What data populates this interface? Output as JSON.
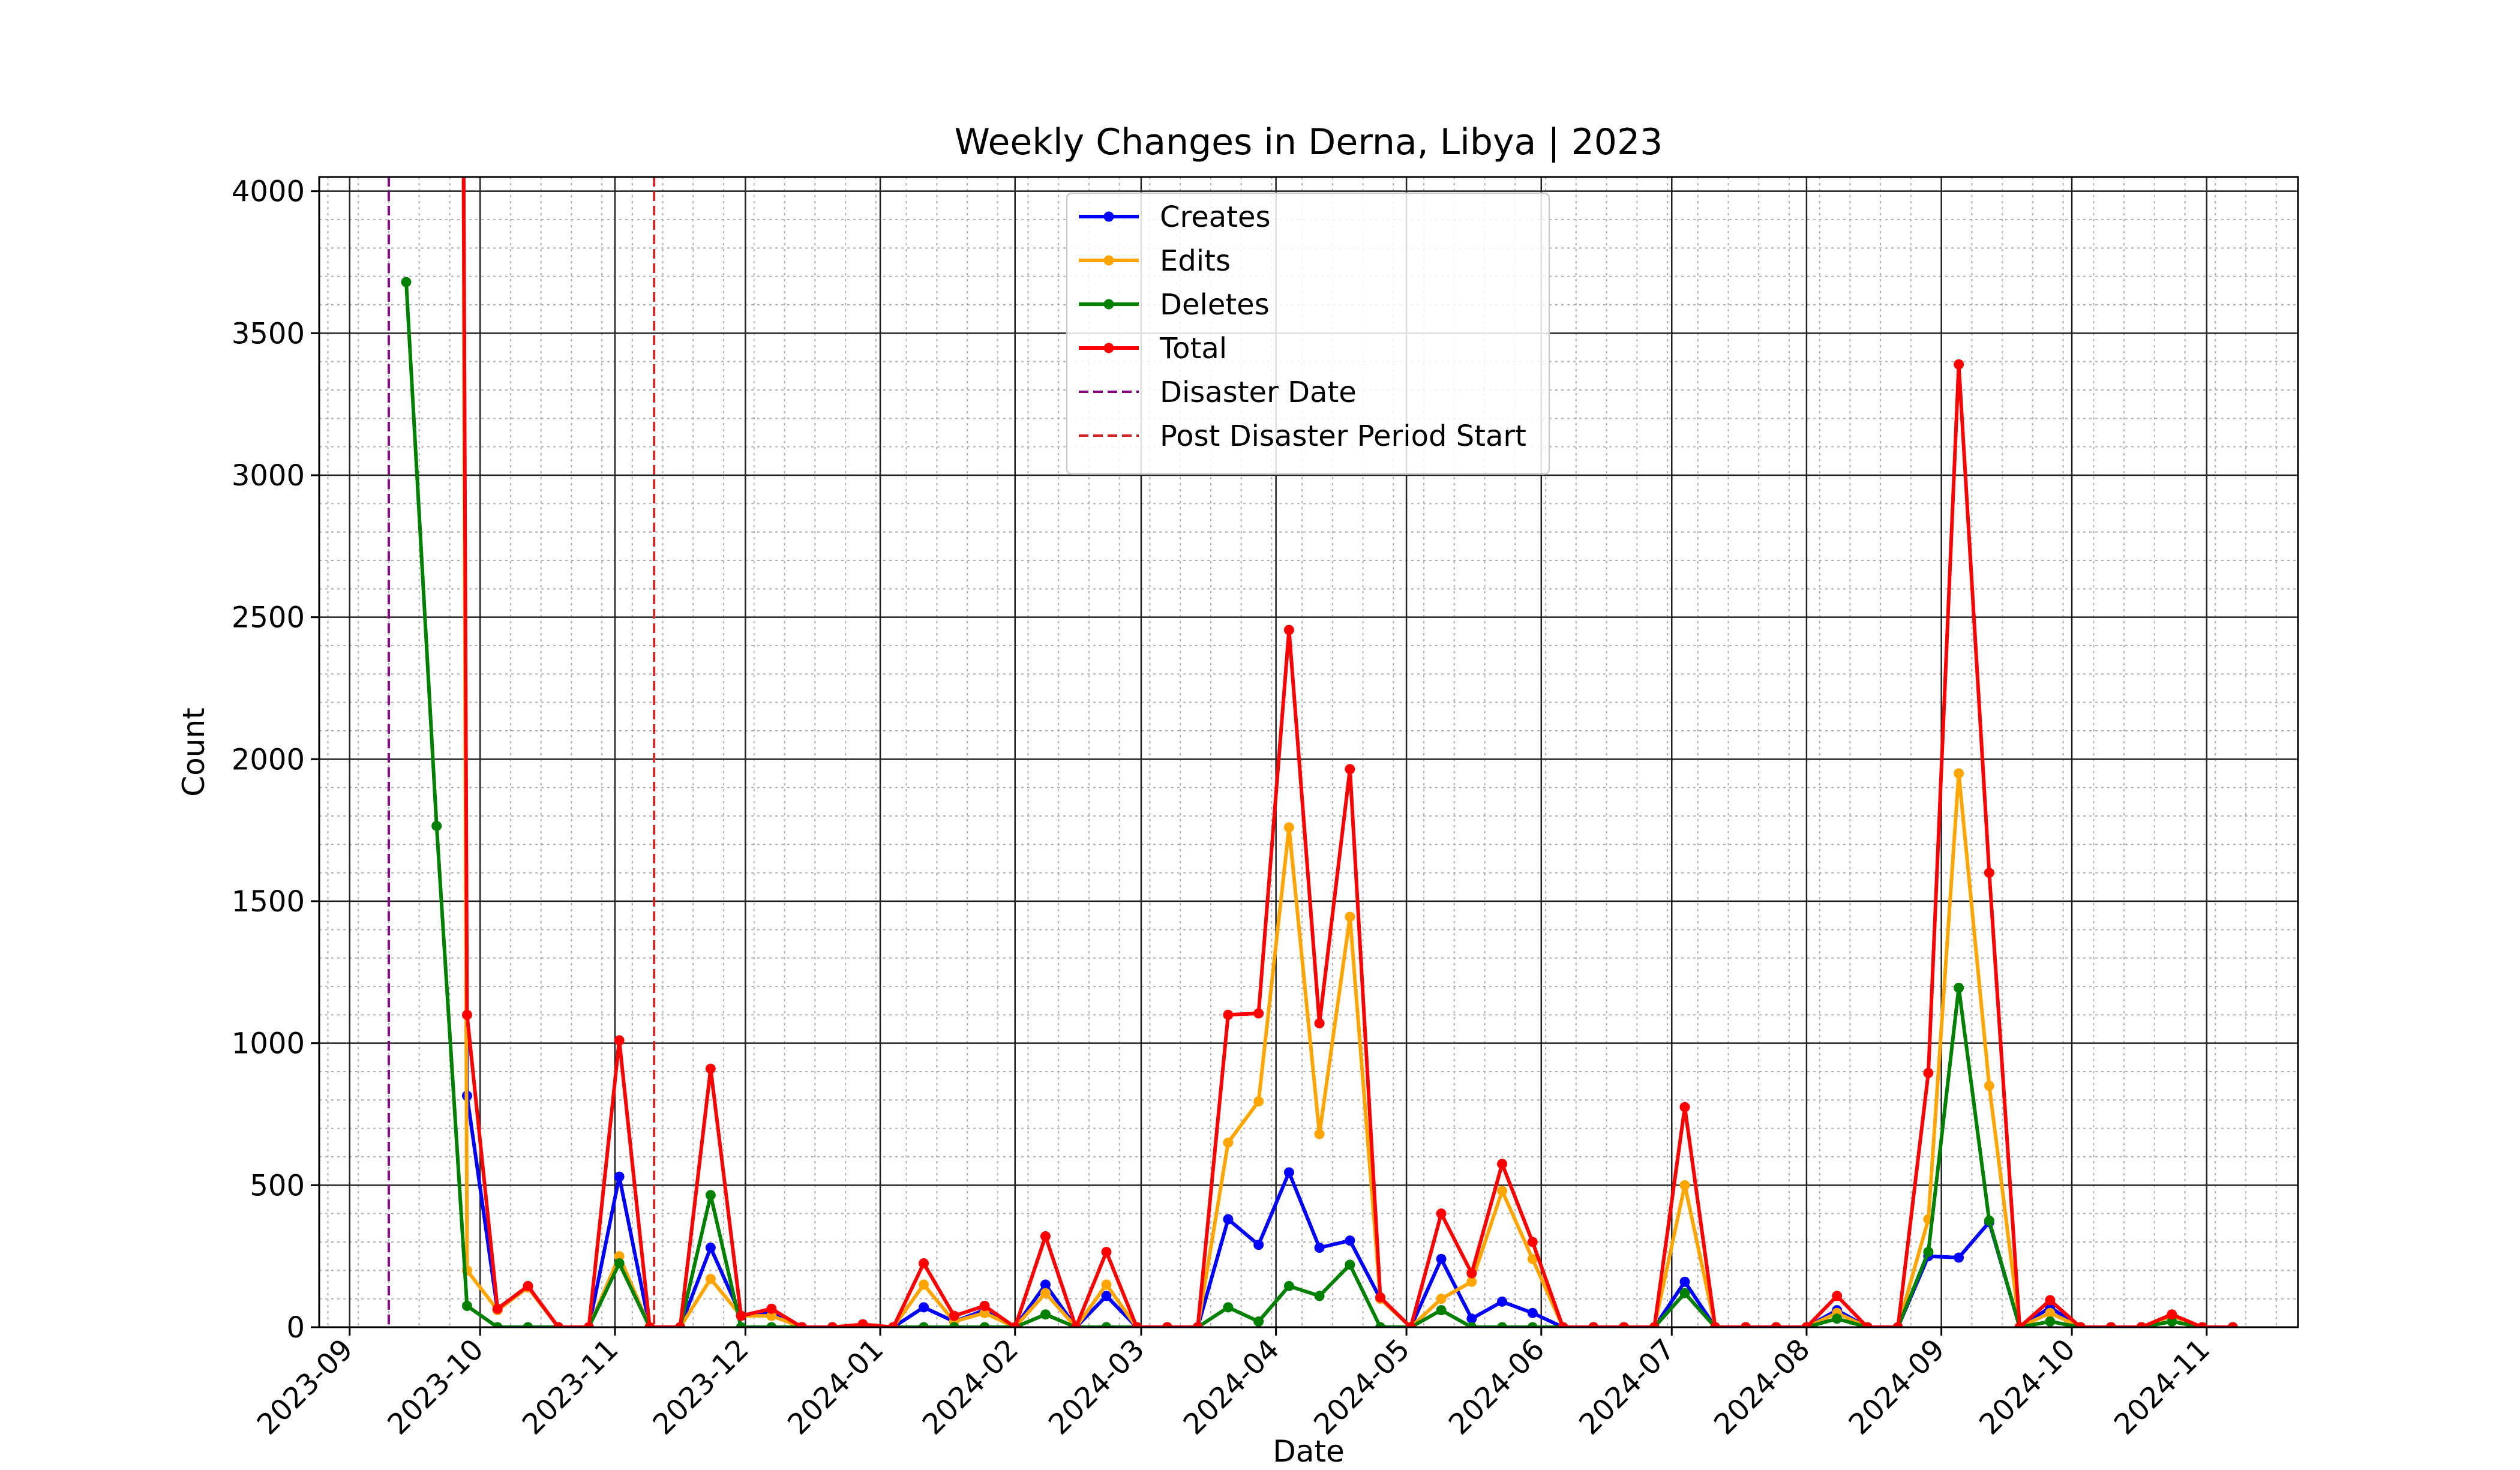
{
  "chart_data": {
    "type": "line",
    "title": "Weekly Changes in Derna, Libya | 2023",
    "xlabel": "Date",
    "ylabel": "Count",
    "x_domain": [
      "2023-08-25",
      "2024-11-22"
    ],
    "ylim": [
      0,
      4050
    ],
    "y_ticks": [
      0,
      500,
      1000,
      1500,
      2000,
      2500,
      3000,
      3500,
      4000
    ],
    "x_ticks": [
      "2023-09",
      "2023-10",
      "2023-11",
      "2023-12",
      "2024-01",
      "2024-02",
      "2024-03",
      "2024-04",
      "2024-05",
      "2024-06",
      "2024-07",
      "2024-08",
      "2024-09",
      "2024-10",
      "2024-11"
    ],
    "x_tick_dates": [
      "2023-09-01",
      "2023-10-01",
      "2023-11-01",
      "2023-12-01",
      "2024-01-01",
      "2024-02-01",
      "2024-03-01",
      "2024-04-01",
      "2024-05-01",
      "2024-06-01",
      "2024-07-01",
      "2024-08-01",
      "2024-09-01",
      "2024-10-01",
      "2024-11-01"
    ],
    "grid": "major and minor",
    "legend_position": "top-center",
    "x": [
      "2023-09-14",
      "2023-09-21",
      "2023-09-28",
      "2023-10-05",
      "2023-10-12",
      "2023-10-19",
      "2023-10-26",
      "2023-11-02",
      "2023-11-09",
      "2023-11-16",
      "2023-11-23",
      "2023-11-30",
      "2023-12-07",
      "2023-12-14",
      "2023-12-21",
      "2023-12-28",
      "2024-01-04",
      "2024-01-11",
      "2024-01-18",
      "2024-01-25",
      "2024-02-01",
      "2024-02-08",
      "2024-02-15",
      "2024-02-22",
      "2024-02-29",
      "2024-03-07",
      "2024-03-14",
      "2024-03-21",
      "2024-03-28",
      "2024-04-04",
      "2024-04-11",
      "2024-04-18",
      "2024-04-25",
      "2024-05-02",
      "2024-05-09",
      "2024-05-16",
      "2024-05-23",
      "2024-05-30",
      "2024-06-06",
      "2024-06-13",
      "2024-06-20",
      "2024-06-27",
      "2024-07-04",
      "2024-07-11",
      "2024-07-18",
      "2024-07-25",
      "2024-08-01",
      "2024-08-08",
      "2024-08-15",
      "2024-08-22",
      "2024-08-29",
      "2024-09-05",
      "2024-09-12",
      "2024-09-19",
      "2024-09-26",
      "2024-10-03",
      "2024-10-10",
      "2024-10-17",
      "2024-10-24",
      "2024-10-31",
      "2024-11-07"
    ],
    "series": [
      {
        "name": "Creates",
        "color": "#0000ff",
        "values": [
          null,
          null,
          815,
          60,
          140,
          0,
          0,
          530,
          0,
          0,
          280,
          40,
          50,
          0,
          0,
          10,
          0,
          70,
          20,
          60,
          0,
          150,
          0,
          110,
          0,
          0,
          0,
          380,
          290,
          545,
          280,
          305,
          100,
          0,
          240,
          30,
          90,
          50,
          0,
          0,
          0,
          0,
          160,
          0,
          0,
          0,
          0,
          60,
          0,
          0,
          250,
          245,
          370,
          0,
          70,
          0,
          0,
          0,
          40,
          0,
          0
        ]
      },
      {
        "name": "Edits",
        "color": "#ffa500",
        "values": [
          null,
          null,
          200,
          60,
          140,
          0,
          0,
          250,
          0,
          0,
          170,
          40,
          40,
          0,
          0,
          10,
          0,
          150,
          20,
          50,
          0,
          120,
          0,
          150,
          0,
          0,
          0,
          650,
          795,
          1760,
          680,
          1445,
          100,
          0,
          100,
          160,
          480,
          240,
          0,
          0,
          0,
          0,
          500,
          0,
          0,
          0,
          0,
          50,
          0,
          0,
          380,
          1950,
          850,
          0,
          50,
          0,
          0,
          0,
          40,
          0,
          0
        ]
      },
      {
        "name": "Deletes",
        "color": "#008000",
        "values": [
          3680,
          1765,
          75,
          0,
          0,
          0,
          0,
          225,
          0,
          0,
          465,
          0,
          0,
          0,
          0,
          0,
          0,
          0,
          0,
          0,
          0,
          45,
          0,
          0,
          0,
          0,
          0,
          70,
          20,
          145,
          110,
          220,
          0,
          0,
          60,
          0,
          0,
          0,
          0,
          0,
          0,
          0,
          120,
          0,
          0,
          0,
          0,
          30,
          0,
          0,
          265,
          1195,
          375,
          0,
          20,
          0,
          0,
          0,
          20,
          0,
          0
        ]
      },
      {
        "name": "Total",
        "color": "#ff0000",
        "values": [
          null,
          null,
          1100,
          65,
          145,
          0,
          0,
          1010,
          0,
          0,
          910,
          40,
          65,
          0,
          0,
          10,
          0,
          225,
          40,
          75,
          0,
          320,
          0,
          265,
          0,
          0,
          0,
          1100,
          1105,
          2455,
          1070,
          1965,
          105,
          0,
          400,
          190,
          575,
          300,
          0,
          0,
          0,
          0,
          775,
          0,
          0,
          0,
          0,
          110,
          0,
          0,
          895,
          3390,
          1600,
          0,
          95,
          0,
          0,
          0,
          45,
          0,
          0
        ]
      }
    ],
    "off_chart_segments": [
      {
        "series": "Edits",
        "from": "2023-09-27",
        "to": "2023-09-28"
      },
      {
        "series": "Total",
        "from": "2023-09-27",
        "to": "2023-09-28"
      },
      {
        "series": "Creates",
        "from": "2023-09-27",
        "to": "2023-09-28"
      }
    ],
    "vlines": [
      {
        "name": "Disaster Date",
        "date": "2023-09-10",
        "color": "#800080",
        "style": "dashed"
      },
      {
        "name": "Post Disaster Period Start",
        "date": "2023-11-10",
        "color": "#d62728",
        "style": "dashed"
      }
    ]
  }
}
